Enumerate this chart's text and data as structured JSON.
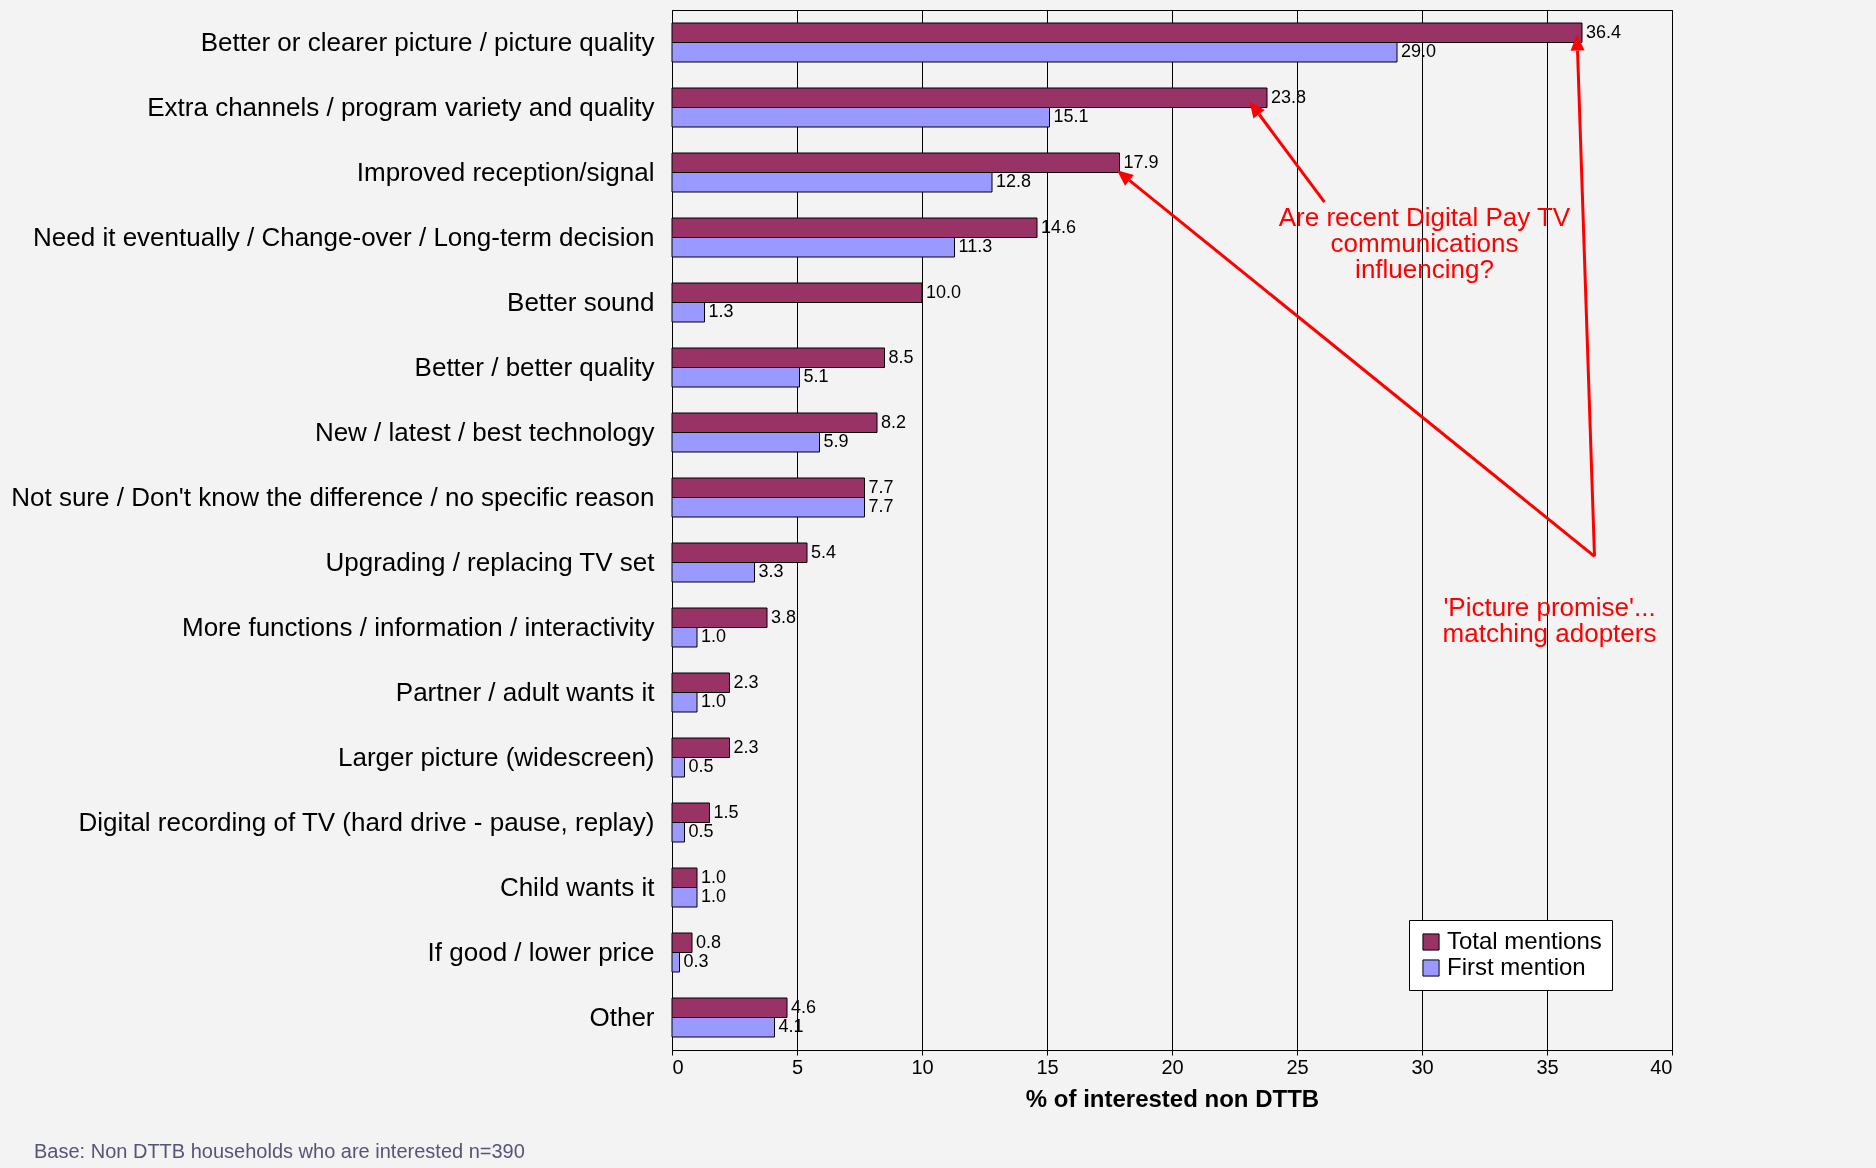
{
  "chart_data": {
    "type": "bar",
    "orientation": "horizontal",
    "xlabel": "% of interested non DTTB",
    "categories": [
      "Better or clearer picture / picture quality",
      "Extra channels / program variety and quality",
      "Improved reception/signal",
      "Need it  eventually / Change-over / Long-term decision",
      "Better sound",
      "Better / better quality",
      "New / latest / best technology",
      "Not sure / Don't know the difference / no specific reason",
      "Upgrading / replacing TV set",
      "More functions / information / interactivity",
      "Partner / adult wants it",
      "Larger picture (widescreen)",
      "Digital recording of TV (hard drive - pause, replay)",
      "Child wants it",
      "If good / lower price",
      "Other"
    ],
    "series": [
      {
        "name": "Total mentions",
        "color": "#993366",
        "values": [
          36.4,
          23.8,
          17.9,
          14.6,
          10.0,
          8.5,
          8.2,
          7.7,
          5.4,
          3.8,
          2.3,
          2.3,
          1.5,
          1.0,
          0.8,
          4.6
        ],
        "value_labels": [
          "36.4",
          "23.8",
          "17.9",
          "14.6",
          "10.0",
          "8.5",
          "8.2",
          "7.7",
          "5.4",
          "3.8",
          "2.3",
          "2.3",
          "1.5",
          "1.0",
          "0.8",
          "4.6"
        ]
      },
      {
        "name": "First mention",
        "color": "#9999ff",
        "values": [
          29.0,
          15.1,
          12.8,
          11.3,
          1.3,
          5.1,
          5.9,
          7.7,
          3.3,
          1.0,
          1.0,
          0.5,
          0.5,
          1.0,
          0.3,
          4.1
        ],
        "value_labels": [
          "29.0",
          "15.1",
          "12.8",
          "11.3",
          "1.3",
          "5.1",
          "5.9",
          "7.7",
          "3.3",
          "1.0",
          "1.0",
          "0.5",
          "0.5",
          "1.0",
          "0.3",
          "4.1"
        ]
      }
    ],
    "xlim": [
      0,
      40
    ],
    "xticks": [
      0,
      5,
      10,
      15,
      20,
      25,
      30,
      35,
      40
    ],
    "grid": "x",
    "legend": "bottom right",
    "annotations": [
      "Are recent Digital Pay TV communications influencing?",
      "'Picture promise'... matching adopters",
      "Base: Non DTTB households who are interested  n=390"
    ]
  }
}
